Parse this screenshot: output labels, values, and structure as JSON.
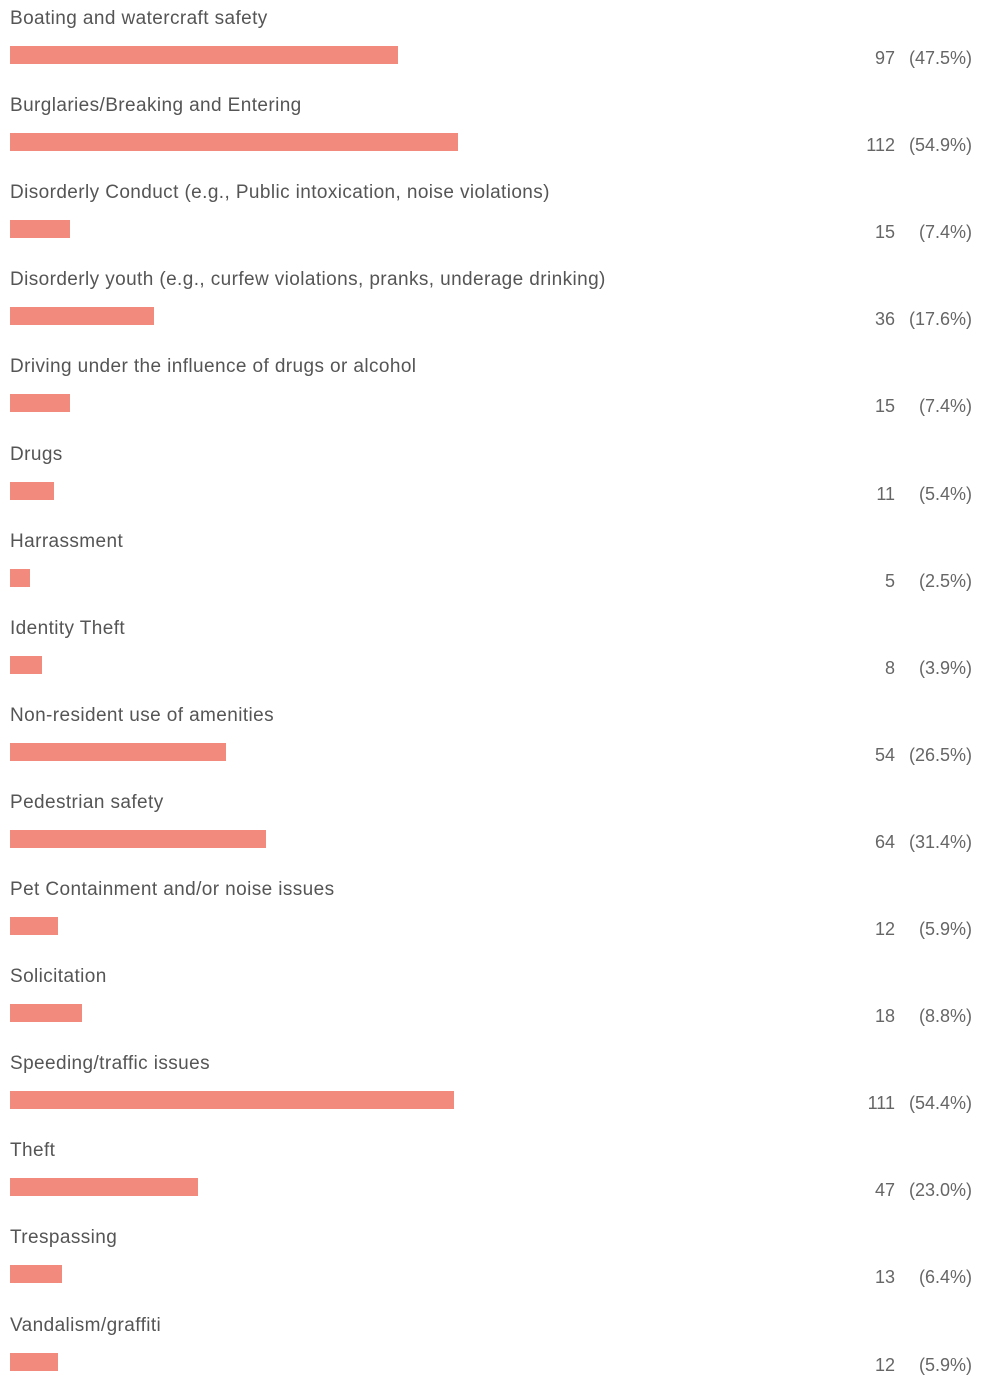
{
  "chart_data": {
    "type": "bar",
    "orientation": "horizontal",
    "bar_color": "#f28b7d",
    "categories": [
      "Boating and watercraft safety",
      "Burglaries/Breaking and Entering",
      "Disorderly Conduct (e.g., Public intoxication, noise violations)",
      "Disorderly youth (e.g., curfew violations, pranks, underage drinking)",
      "Driving under the influence of drugs or alcohol",
      "Drugs",
      "Harrassment",
      "Identity Theft",
      "Non-resident use of amenities",
      "Pedestrian safety",
      "Pet Containment and/or noise issues",
      "Solicitation",
      "Speeding/traffic issues",
      "Theft",
      "Trespassing",
      "Vandalism/graffiti"
    ],
    "values": [
      97,
      112,
      15,
      36,
      15,
      11,
      5,
      8,
      54,
      64,
      12,
      18,
      111,
      47,
      13,
      12
    ],
    "percent_labels": [
      "(47.5%)",
      "(54.9%)",
      "(7.4%)",
      "(17.6%)",
      "(7.4%)",
      "(5.4%)",
      "(2.5%)",
      "(3.9%)",
      "(26.5%)",
      "(31.4%)",
      "(5.9%)",
      "(8.8%)",
      "(54.4%)",
      "(23.0%)",
      "(6.4%)",
      "(5.9%)"
    ],
    "title": "",
    "xlabel": "",
    "ylabel": "",
    "grid": false,
    "legend": "none"
  }
}
